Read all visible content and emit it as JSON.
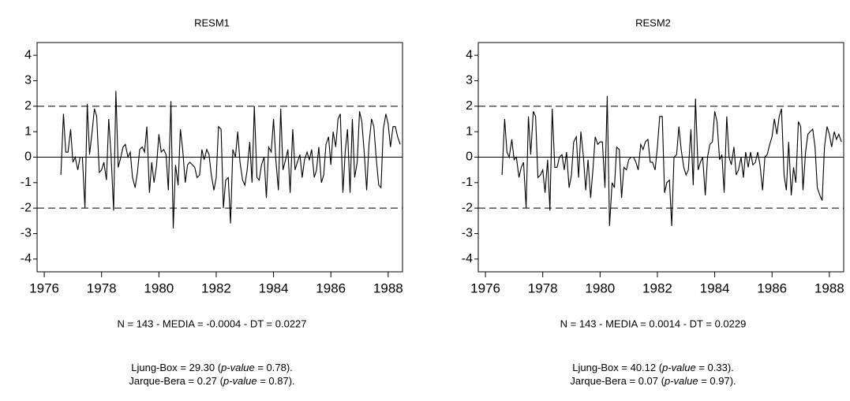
{
  "chart_data": [
    {
      "type": "line",
      "title": "RESM1",
      "color": "#000000",
      "xlim": [
        1975.75,
        1988.5
      ],
      "xticks": [
        1976,
        1978,
        1980,
        1982,
        1984,
        1986,
        1988
      ],
      "ylim": [
        -4.5,
        4.5
      ],
      "yticks": [
        -4,
        -3,
        -2,
        -1,
        0,
        1,
        2,
        3,
        4
      ],
      "hlines": [
        {
          "value": -2,
          "style": "dashed"
        },
        {
          "value": 0,
          "style": "solid"
        },
        {
          "value": 2,
          "style": "dashed"
        }
      ],
      "x": [
        1976.58,
        1976.67,
        1976.75,
        1976.83,
        1976.92,
        1977.0,
        1977.08,
        1977.17,
        1977.25,
        1977.33,
        1977.42,
        1977.5,
        1977.58,
        1977.67,
        1977.75,
        1977.83,
        1977.92,
        1978.0,
        1978.08,
        1978.17,
        1978.25,
        1978.33,
        1978.42,
        1978.5,
        1978.58,
        1978.67,
        1978.75,
        1978.83,
        1978.92,
        1979.0,
        1979.08,
        1979.17,
        1979.25,
        1979.33,
        1979.42,
        1979.5,
        1979.58,
        1979.67,
        1979.75,
        1979.83,
        1979.92,
        1980.0,
        1980.08,
        1980.17,
        1980.25,
        1980.33,
        1980.42,
        1980.5,
        1980.58,
        1980.67,
        1980.75,
        1980.83,
        1980.92,
        1981.0,
        1981.08,
        1981.17,
        1981.25,
        1981.33,
        1981.42,
        1981.5,
        1981.58,
        1981.67,
        1981.75,
        1981.83,
        1981.92,
        1982.0,
        1982.08,
        1982.17,
        1982.25,
        1982.33,
        1982.42,
        1982.5,
        1982.58,
        1982.67,
        1982.75,
        1982.83,
        1982.92,
        1983.0,
        1983.08,
        1983.17,
        1983.25,
        1983.33,
        1983.42,
        1983.5,
        1983.58,
        1983.67,
        1983.75,
        1983.83,
        1983.92,
        1984.0,
        1984.08,
        1984.17,
        1984.25,
        1984.33,
        1984.42,
        1984.5,
        1984.58,
        1984.67,
        1984.75,
        1984.83,
        1984.92,
        1985.0,
        1985.08,
        1985.17,
        1985.25,
        1985.33,
        1985.42,
        1985.5,
        1985.58,
        1985.67,
        1985.75,
        1985.83,
        1985.92,
        1986.0,
        1986.08,
        1986.17,
        1986.25,
        1986.33,
        1986.42,
        1986.5,
        1986.58,
        1986.67,
        1986.75,
        1986.83,
        1986.92,
        1987.0,
        1987.08,
        1987.17,
        1987.25,
        1987.33,
        1987.42,
        1987.5,
        1987.58,
        1987.67,
        1987.75,
        1987.83,
        1987.92,
        1988.0,
        1988.08,
        1988.17,
        1988.25,
        1988.33,
        1988.42
      ],
      "values": [
        -0.7,
        1.7,
        0.2,
        0.2,
        1.1,
        -0.2,
        0.0,
        -0.5,
        0.0,
        0.0,
        -2.0,
        2.1,
        0.1,
        1.0,
        1.9,
        1.6,
        -0.6,
        -0.5,
        -0.2,
        -0.9,
        1.5,
        0.1,
        -2.1,
        2.6,
        -0.4,
        0.0,
        0.4,
        0.5,
        0.0,
        0.2,
        -0.8,
        -1.2,
        -0.6,
        0.3,
        0.4,
        0.2,
        1.2,
        -1.4,
        -0.2,
        -1.0,
        -0.3,
        0.9,
        0.2,
        0.3,
        0.1,
        -1.3,
        2.2,
        -2.8,
        -0.3,
        -1.1,
        1.1,
        0.3,
        -1.0,
        -0.3,
        -0.2,
        -0.3,
        -0.4,
        -0.8,
        -0.7,
        0.3,
        -0.1,
        0.3,
        0.1,
        -0.7,
        -1.3,
        -0.8,
        1.2,
        1.1,
        -2.0,
        -0.9,
        -0.8,
        -2.6,
        0.3,
        0.0,
        1.0,
        -0.2,
        -0.9,
        -1.1,
        -0.5,
        0.6,
        -1.0,
        2.0,
        -0.8,
        -0.9,
        -0.3,
        0.0,
        -1.6,
        0.4,
        0.2,
        1.5,
        -0.1,
        -1.3,
        1.9,
        -0.5,
        -0.1,
        0.3,
        -1.4,
        1.1,
        -0.5,
        -0.2,
        0.1,
        -0.8,
        -0.1,
        0.2,
        -0.1,
        0.3,
        -0.8,
        -0.5,
        0.4,
        -1.0,
        -0.7,
        0.5,
        0.8,
        -0.3,
        1.0,
        0.4,
        1.5,
        1.7,
        -1.4,
        0.2,
        1.1,
        -1.4,
        1.5,
        -0.8,
        -0.2,
        1.8,
        1.4,
        0.1,
        -1.3,
        0.5,
        1.5,
        1.2,
        0.0,
        -1.1,
        -1.2,
        1.1,
        1.7,
        1.3,
        0.4,
        1.2,
        1.2,
        0.8,
        0.5
      ],
      "summary": "N = 143 - MEDIA = -0.0004 - DT = 0.0227",
      "notes": [
        [
          "Ljung-Box = 29.30 (",
          "p-value",
          " = 0.78)."
        ],
        [
          "Jarque-Bera = 0.27 (",
          "p-value",
          " = 0.87)."
        ]
      ]
    },
    {
      "type": "line",
      "title": "RESM2",
      "color": "#000000",
      "xlim": [
        1975.75,
        1988.5
      ],
      "xticks": [
        1976,
        1978,
        1980,
        1982,
        1984,
        1986,
        1988
      ],
      "ylim": [
        -4.5,
        4.5
      ],
      "yticks": [
        -4,
        -3,
        -2,
        -1,
        0,
        1,
        2,
        3,
        4
      ],
      "hlines": [
        {
          "value": -2,
          "style": "dashed"
        },
        {
          "value": 0,
          "style": "solid"
        },
        {
          "value": 2,
          "style": "dashed"
        }
      ],
      "x": [
        1976.58,
        1976.67,
        1976.75,
        1976.83,
        1976.92,
        1977.0,
        1977.08,
        1977.17,
        1977.25,
        1977.33,
        1977.42,
        1977.5,
        1977.58,
        1977.67,
        1977.75,
        1977.83,
        1977.92,
        1978.0,
        1978.08,
        1978.17,
        1978.25,
        1978.33,
        1978.42,
        1978.5,
        1978.58,
        1978.67,
        1978.75,
        1978.83,
        1978.92,
        1979.0,
        1979.08,
        1979.17,
        1979.25,
        1979.33,
        1979.42,
        1979.5,
        1979.58,
        1979.67,
        1979.75,
        1979.83,
        1979.92,
        1980.0,
        1980.08,
        1980.17,
        1980.25,
        1980.33,
        1980.42,
        1980.5,
        1980.58,
        1980.67,
        1980.75,
        1980.83,
        1980.92,
        1981.0,
        1981.08,
        1981.17,
        1981.25,
        1981.33,
        1981.42,
        1981.5,
        1981.58,
        1981.67,
        1981.75,
        1981.83,
        1981.92,
        1982.0,
        1982.08,
        1982.17,
        1982.25,
        1982.33,
        1982.42,
        1982.5,
        1982.58,
        1982.67,
        1982.75,
        1982.83,
        1982.92,
        1983.0,
        1983.08,
        1983.17,
        1983.25,
        1983.33,
        1983.42,
        1983.5,
        1983.58,
        1983.67,
        1983.75,
        1983.83,
        1983.92,
        1984.0,
        1984.08,
        1984.17,
        1984.25,
        1984.33,
        1984.42,
        1984.5,
        1984.58,
        1984.67,
        1984.75,
        1984.83,
        1984.92,
        1985.0,
        1985.08,
        1985.17,
        1985.25,
        1985.33,
        1985.42,
        1985.5,
        1985.58,
        1985.67,
        1985.75,
        1985.83,
        1985.92,
        1986.0,
        1986.08,
        1986.17,
        1986.25,
        1986.33,
        1986.42,
        1986.5,
        1986.58,
        1986.67,
        1986.75,
        1986.83,
        1986.92,
        1987.0,
        1987.08,
        1987.17,
        1987.25,
        1987.33,
        1987.42,
        1987.5,
        1987.58,
        1987.67,
        1987.75,
        1987.83,
        1987.92,
        1988.0,
        1988.08,
        1988.17,
        1988.25,
        1988.33,
        1988.42
      ],
      "values": [
        -0.7,
        1.5,
        0.2,
        0.0,
        0.7,
        -0.1,
        0.0,
        -0.8,
        -0.4,
        -0.2,
        -2.0,
        1.6,
        0.1,
        1.8,
        1.6,
        -0.8,
        -0.7,
        -0.5,
        -1.4,
        -0.1,
        -2.1,
        1.9,
        -0.4,
        -0.4,
        0.0,
        0.1,
        -0.5,
        0.2,
        -1.2,
        -0.7,
        0.6,
        0.8,
        -0.8,
        1.0,
        0.0,
        -1.3,
        -0.1,
        -1.6,
        -0.5,
        0.8,
        0.5,
        0.6,
        0.6,
        -1.2,
        2.4,
        -2.7,
        -1.0,
        -1.2,
        0.4,
        0.3,
        -1.6,
        -0.4,
        -0.5,
        -0.1,
        0.0,
        0.0,
        -0.2,
        -0.5,
        0.5,
        0.3,
        0.6,
        0.7,
        -0.2,
        -0.2,
        -0.5,
        0.4,
        1.6,
        1.6,
        -1.4,
        -1.0,
        -0.9,
        -2.7,
        0.0,
        0.1,
        1.2,
        0.3,
        -0.4,
        -0.7,
        -0.5,
        1.1,
        -1.1,
        2.3,
        -0.5,
        -0.2,
        0.0,
        -1.5,
        0.0,
        0.5,
        0.6,
        1.8,
        1.4,
        -0.1,
        0.1,
        -1.4,
        1.6,
        0.0,
        -0.3,
        0.4,
        -0.7,
        -0.5,
        0.0,
        -0.8,
        0.2,
        -0.4,
        0.2,
        -0.3,
        -0.2,
        0.2,
        -0.3,
        -1.3,
        0.0,
        0.1,
        0.5,
        0.8,
        1.5,
        0.9,
        1.6,
        1.9,
        -0.7,
        -1.3,
        0.6,
        -1.5,
        -0.4,
        -1.0,
        1.4,
        1.2,
        -1.3,
        0.2,
        0.9,
        1.0,
        1.1,
        0.4,
        -1.2,
        -1.5,
        -1.7,
        0.4,
        1.2,
        0.9,
        0.4,
        1.0,
        0.7,
        0.9,
        0.6
      ],
      "summary": "N = 143 - MEDIA = 0.0014 - DT = 0.0229",
      "notes": [
        [
          "Ljung-Box = 40.12 (",
          "p-value",
          " = 0.33)."
        ],
        [
          "Jarque-Bera = 0.07 (",
          "p-value",
          " = 0.97)."
        ]
      ]
    }
  ]
}
